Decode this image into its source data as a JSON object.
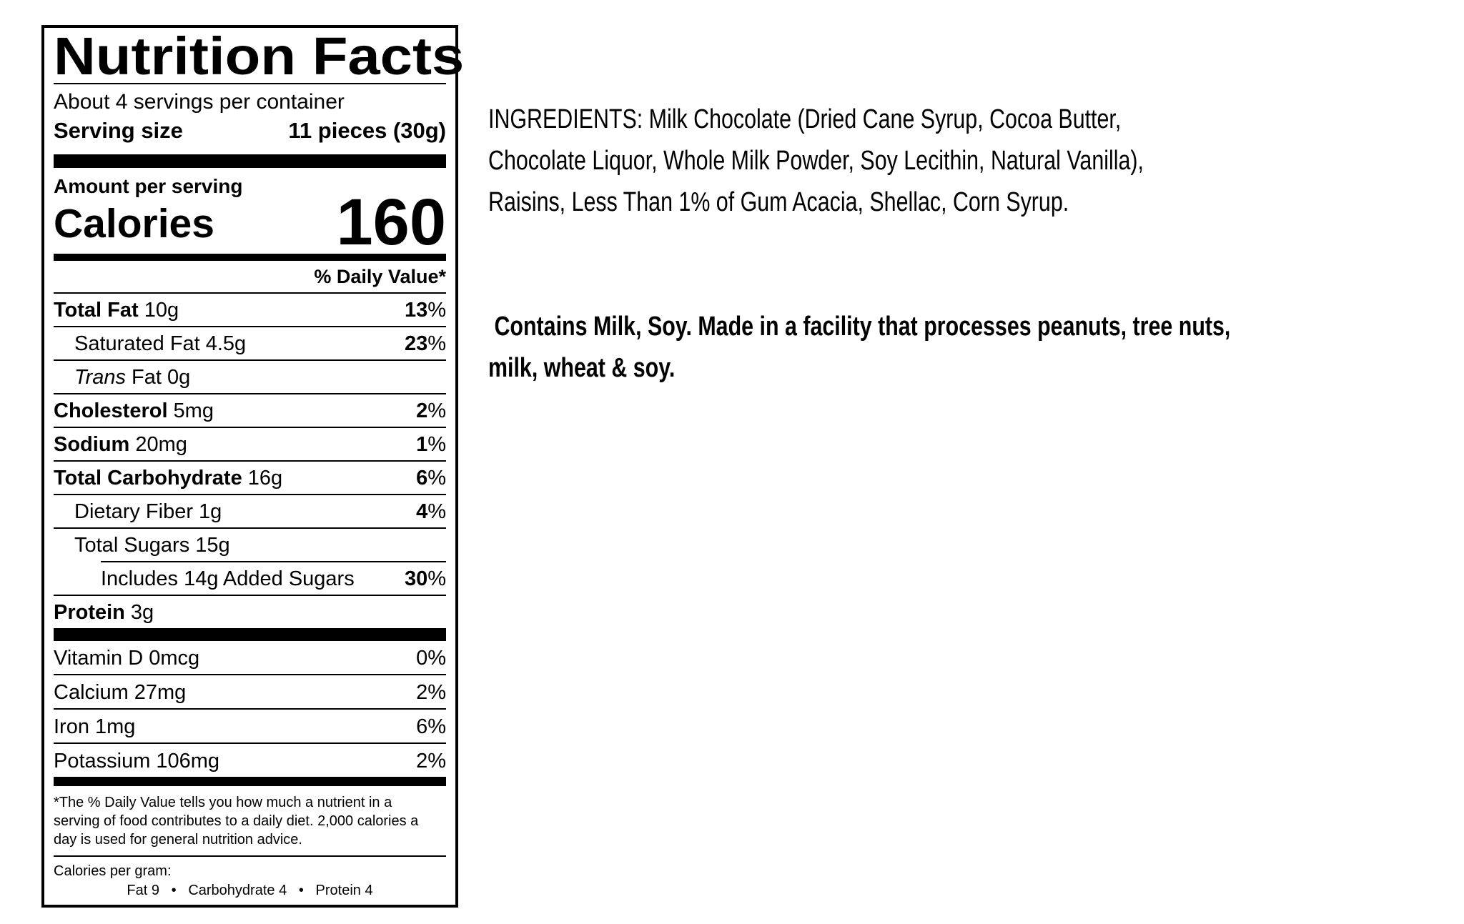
{
  "colors": {
    "text": "#000000",
    "background": "#ffffff"
  },
  "label": {
    "title": "Nutrition Facts",
    "servings_per_container": "About 4 servings per container",
    "serving_size_label": "Serving size",
    "serving_size_value": "11 pieces (30g)",
    "amount_per_serving": "Amount per serving",
    "calories_label": "Calories",
    "calories_value": "160",
    "daily_value_header": "% Daily Value*",
    "nutrients": [
      {
        "name": "Total Fat",
        "amount": "10g",
        "dv_num": "13",
        "dv_sign": "%"
      },
      {
        "name": "Saturated Fat",
        "amount": "4.5g",
        "dv_num": "23",
        "dv_sign": "%"
      },
      {
        "name_italic": "Trans",
        "name": " Fat",
        "amount": "0g",
        "dv_num": "",
        "dv_sign": ""
      },
      {
        "name": "Cholesterol",
        "amount": "5mg",
        "dv_num": "2",
        "dv_sign": "%"
      },
      {
        "name": "Sodium",
        "amount": "20mg",
        "dv_num": "1",
        "dv_sign": "%"
      },
      {
        "name": "Total Carbohydrate",
        "amount": "16g",
        "dv_num": "6",
        "dv_sign": "%"
      },
      {
        "name": "Dietary Fiber",
        "amount": "1g",
        "dv_num": "4",
        "dv_sign": "%"
      },
      {
        "name": "Total Sugars",
        "amount": "15g",
        "dv_num": "",
        "dv_sign": ""
      },
      {
        "name": "Includes 14g Added Sugars",
        "amount": "",
        "dv_num": "30",
        "dv_sign": "%"
      },
      {
        "name": "Protein",
        "amount": "3g",
        "dv_num": "",
        "dv_sign": ""
      }
    ],
    "vitamins": [
      {
        "name": "Vitamin D",
        "amount": "0mcg",
        "dv_num": "0",
        "dv_sign": "%"
      },
      {
        "name": "Calcium",
        "amount": "27mg",
        "dv_num": "2",
        "dv_sign": "%"
      },
      {
        "name": "Iron",
        "amount": "1mg",
        "dv_num": "6",
        "dv_sign": "%"
      },
      {
        "name": "Potassium",
        "amount": "106mg",
        "dv_num": "2",
        "dv_sign": "%"
      }
    ],
    "footnote": "*The % Daily Value tells you how much a nutrient in a\nserving of food contributes to a daily diet. 2,000 calories a\nday is used for general nutrition advice.",
    "calories_per_gram_label": "Calories per gram:",
    "calories_per_gram_values": "Fat 9   •   Carbohydrate 4   •   Protein 4"
  },
  "ingredients": {
    "text": "INGREDIENTS: Milk Chocolate (Dried Cane Syrup, Cocoa Butter,\nChocolate Liquor, Whole Milk Powder, Soy Lecithin, Natural Vanilla),\nRaisins, Less Than 1% of Gum Acacia, Shellac, Corn Syrup.",
    "allergen_text": " Contains Milk, Soy. Made in a facility that processes peanuts, tree nuts,\nmilk, wheat & soy."
  }
}
